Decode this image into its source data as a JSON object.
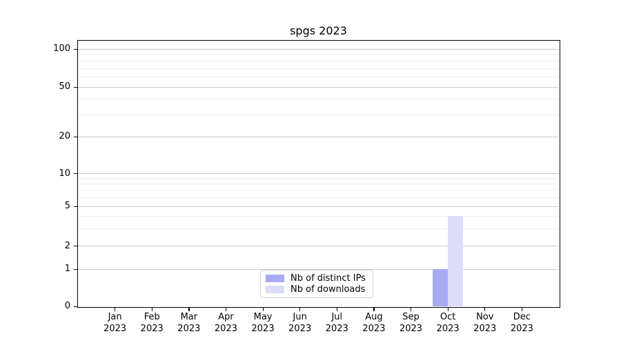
{
  "chart_data": {
    "type": "bar",
    "title": "spgs 2023",
    "y_scale": "symlog",
    "ylim": [
      0,
      116
    ],
    "y_ticks": [
      0,
      1,
      2,
      5,
      10,
      20,
      50,
      100
    ],
    "y_minor_ticks": [
      3,
      4,
      6,
      7,
      8,
      9,
      30,
      40,
      60,
      70,
      80,
      90
    ],
    "grid": true,
    "legend_position": "lower center",
    "categories": [
      {
        "month": "Jan",
        "year": "2023"
      },
      {
        "month": "Feb",
        "year": "2023"
      },
      {
        "month": "Mar",
        "year": "2023"
      },
      {
        "month": "Apr",
        "year": "2023"
      },
      {
        "month": "May",
        "year": "2023"
      },
      {
        "month": "Jun",
        "year": "2023"
      },
      {
        "month": "Jul",
        "year": "2023"
      },
      {
        "month": "Aug",
        "year": "2023"
      },
      {
        "month": "Sep",
        "year": "2023"
      },
      {
        "month": "Oct",
        "year": "2023"
      },
      {
        "month": "Nov",
        "year": "2023"
      },
      {
        "month": "Dec",
        "year": "2023"
      }
    ],
    "series": [
      {
        "name": "Nb of distinct IPs",
        "color": "#a9a9f5",
        "values": [
          0,
          0,
          0,
          0,
          0,
          0,
          0,
          0,
          0,
          1,
          0,
          0
        ]
      },
      {
        "name": "Nb of downloads",
        "color": "#dcdcf8",
        "values": [
          0,
          0,
          0,
          0,
          0,
          0,
          0,
          0,
          0,
          4,
          0,
          0
        ]
      }
    ]
  },
  "colors": {
    "background": "#ffffff",
    "axis": "#000000",
    "grid_major": "#cccccc",
    "grid_minor": "#eeeeee",
    "legend_border": "#d4d4d4",
    "text": "#000000"
  }
}
